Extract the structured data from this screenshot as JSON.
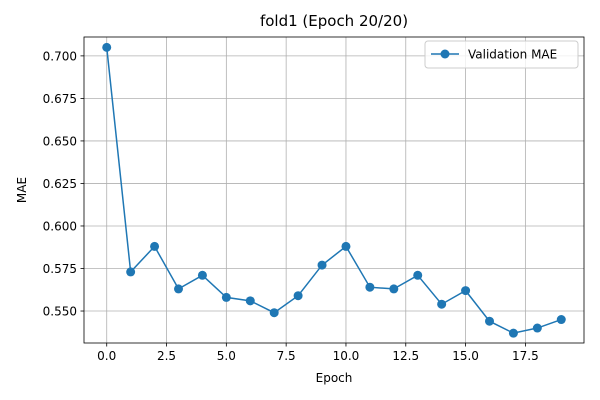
{
  "chart_data": {
    "type": "line",
    "title": "fold1 (Epoch 20/20)",
    "xlabel": "Epoch",
    "ylabel": "MAE",
    "xlim": [
      -0.95,
      19.95
    ],
    "ylim": [
      0.5312,
      0.7111
    ],
    "xticks": [
      0,
      2.5,
      5,
      7.5,
      10,
      12.5,
      15,
      17.5
    ],
    "xtick_labels": [
      "0.0",
      "2.5",
      "5.0",
      "7.5",
      "10.0",
      "12.5",
      "15.0",
      "17.5"
    ],
    "yticks": [
      0.55,
      0.575,
      0.6,
      0.625,
      0.65,
      0.675,
      0.7
    ],
    "ytick_labels": [
      "0.550",
      "0.575",
      "0.600",
      "0.625",
      "0.650",
      "0.675",
      "0.700"
    ],
    "grid": true,
    "legend_position": "top-right",
    "series": [
      {
        "name": "Validation MAE",
        "color": "#1f77b4",
        "marker": "circle",
        "x": [
          0,
          1,
          2,
          3,
          4,
          5,
          6,
          7,
          8,
          9,
          10,
          11,
          12,
          13,
          14,
          15,
          16,
          17,
          18,
          19
        ],
        "y": [
          0.705,
          0.573,
          0.588,
          0.563,
          0.571,
          0.558,
          0.556,
          0.549,
          0.559,
          0.577,
          0.588,
          0.564,
          0.563,
          0.571,
          0.554,
          0.562,
          0.544,
          0.537,
          0.54,
          0.545
        ]
      }
    ]
  }
}
